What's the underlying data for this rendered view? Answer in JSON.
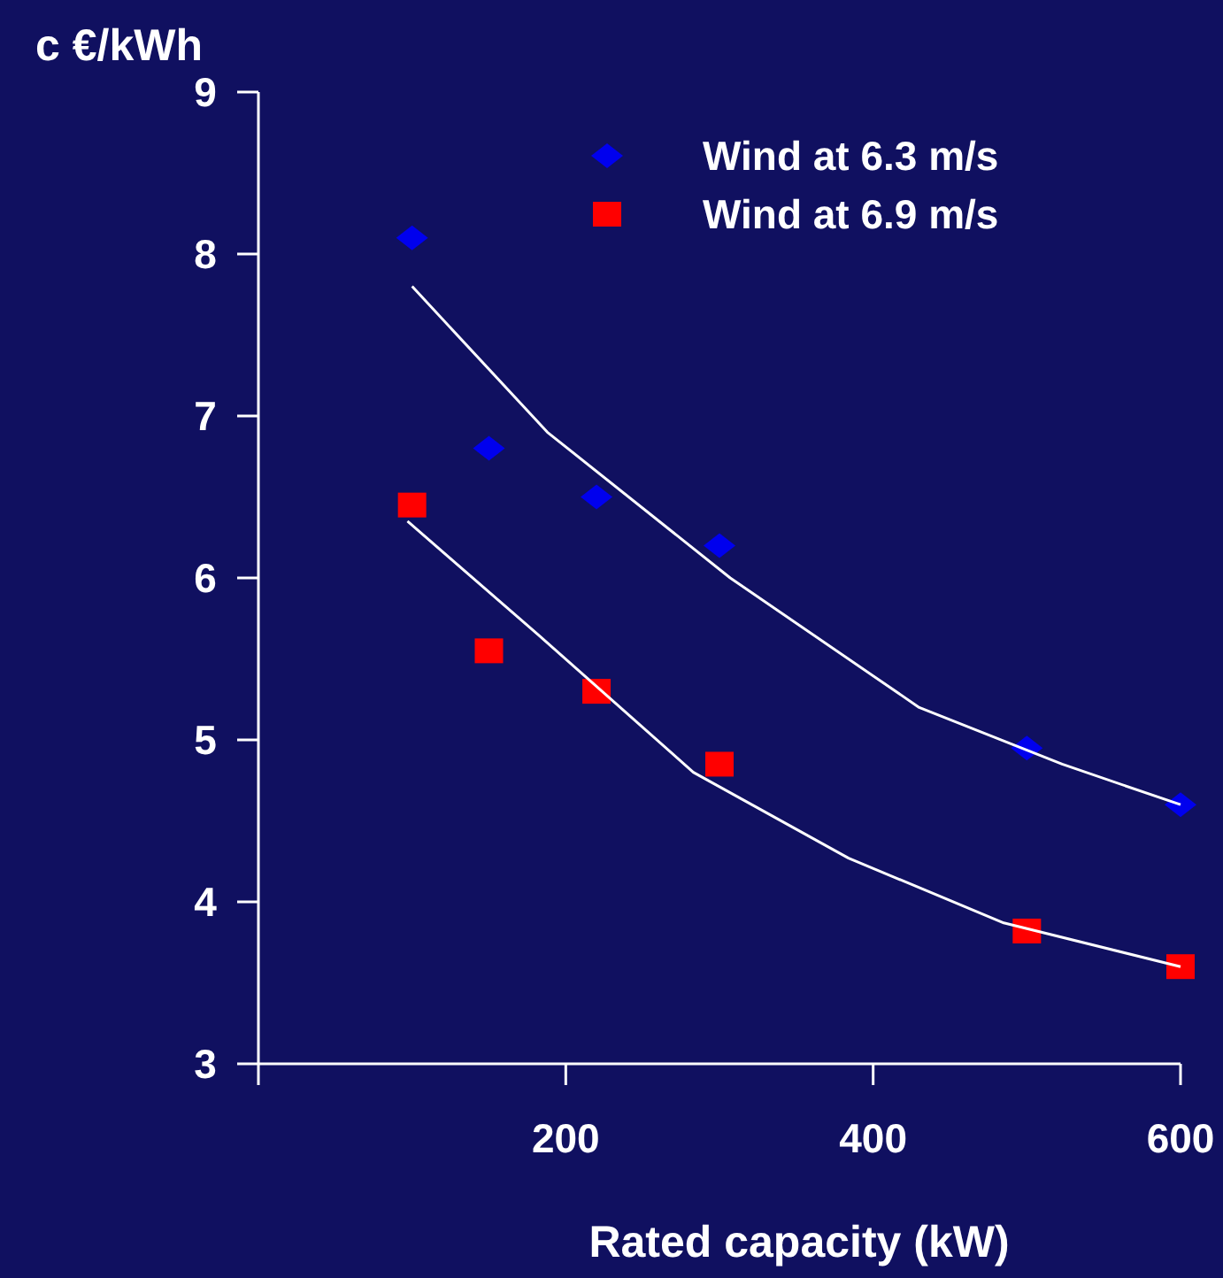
{
  "chart_data": {
    "type": "scatter",
    "xlabel": "Rated capacity (kW)",
    "ylabel": "c €/kWh",
    "xlim": [
      0,
      600
    ],
    "xticks": [
      {
        "value": 0,
        "label": null
      },
      200,
      400,
      600
    ],
    "ylim": [
      3,
      9
    ],
    "yticks": [
      3,
      4,
      5,
      6,
      7,
      8,
      9
    ],
    "grid": false,
    "legend": "top right",
    "series": [
      {
        "name": "Wind at 6.3 m/s",
        "color": "#0000ee",
        "marker": "diamond",
        "x": [
          100,
          150,
          220,
          300,
          500,
          600
        ],
        "values": [
          8.1,
          6.8,
          6.5,
          6.2,
          4.95,
          4.6
        ]
      },
      {
        "name": "Wind at 6.9 m/s",
        "color": "#ff0000",
        "marker": "square",
        "x": [
          100,
          150,
          220,
          300,
          500,
          600
        ],
        "values": [
          6.45,
          5.55,
          5.3,
          4.85,
          3.82,
          3.6
        ]
      },
      {
        "type": "line",
        "color": "#ffffff",
        "marker": "none",
        "x": [
          100,
          188,
          307,
          430,
          523,
          600
        ],
        "values": [
          7.8,
          6.9,
          6.0,
          5.2,
          4.85,
          4.6
        ]
      },
      {
        "type": "line",
        "color": "#ffffff",
        "marker": "none",
        "x": [
          97,
          182,
          283,
          384,
          485,
          600
        ],
        "values": [
          6.35,
          5.65,
          4.8,
          4.27,
          3.87,
          3.6
        ]
      }
    ]
  }
}
